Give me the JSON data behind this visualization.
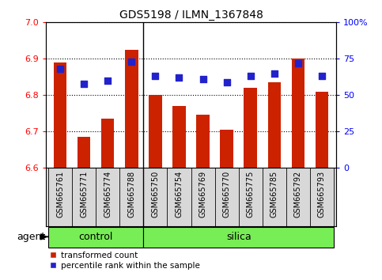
{
  "title": "GDS5198 / ILMN_1367848",
  "samples": [
    "GSM665761",
    "GSM665771",
    "GSM665774",
    "GSM665788",
    "GSM665750",
    "GSM665754",
    "GSM665769",
    "GSM665770",
    "GSM665775",
    "GSM665785",
    "GSM665792",
    "GSM665793"
  ],
  "groups": [
    "control",
    "control",
    "control",
    "control",
    "silica",
    "silica",
    "silica",
    "silica",
    "silica",
    "silica",
    "silica",
    "silica"
  ],
  "transformed_count": [
    6.89,
    6.685,
    6.735,
    6.925,
    6.8,
    6.77,
    6.745,
    6.705,
    6.82,
    6.835,
    6.9,
    6.81
  ],
  "percentile_rank": [
    68,
    58,
    60,
    73,
    63,
    62,
    61,
    59,
    63,
    65,
    72,
    63
  ],
  "ylim_left": [
    6.6,
    7.0
  ],
  "ylim_right": [
    0,
    100
  ],
  "yticks_left": [
    6.6,
    6.7,
    6.8,
    6.9,
    7.0
  ],
  "yticks_right": [
    0,
    25,
    50,
    75,
    100
  ],
  "ytick_labels_right": [
    "0",
    "25",
    "50",
    "75",
    "100%"
  ],
  "bar_color": "#cc2200",
  "dot_color": "#2222cc",
  "label_bg_color": "#d8d8d8",
  "group_bar_color": "#77ee55",
  "group_border_color": "#000000",
  "agent_label": "agent",
  "legend_bar_label": "transformed count",
  "legend_dot_label": "percentile rank within the sample",
  "background_color": "#ffffff",
  "bar_bottom": 6.6
}
